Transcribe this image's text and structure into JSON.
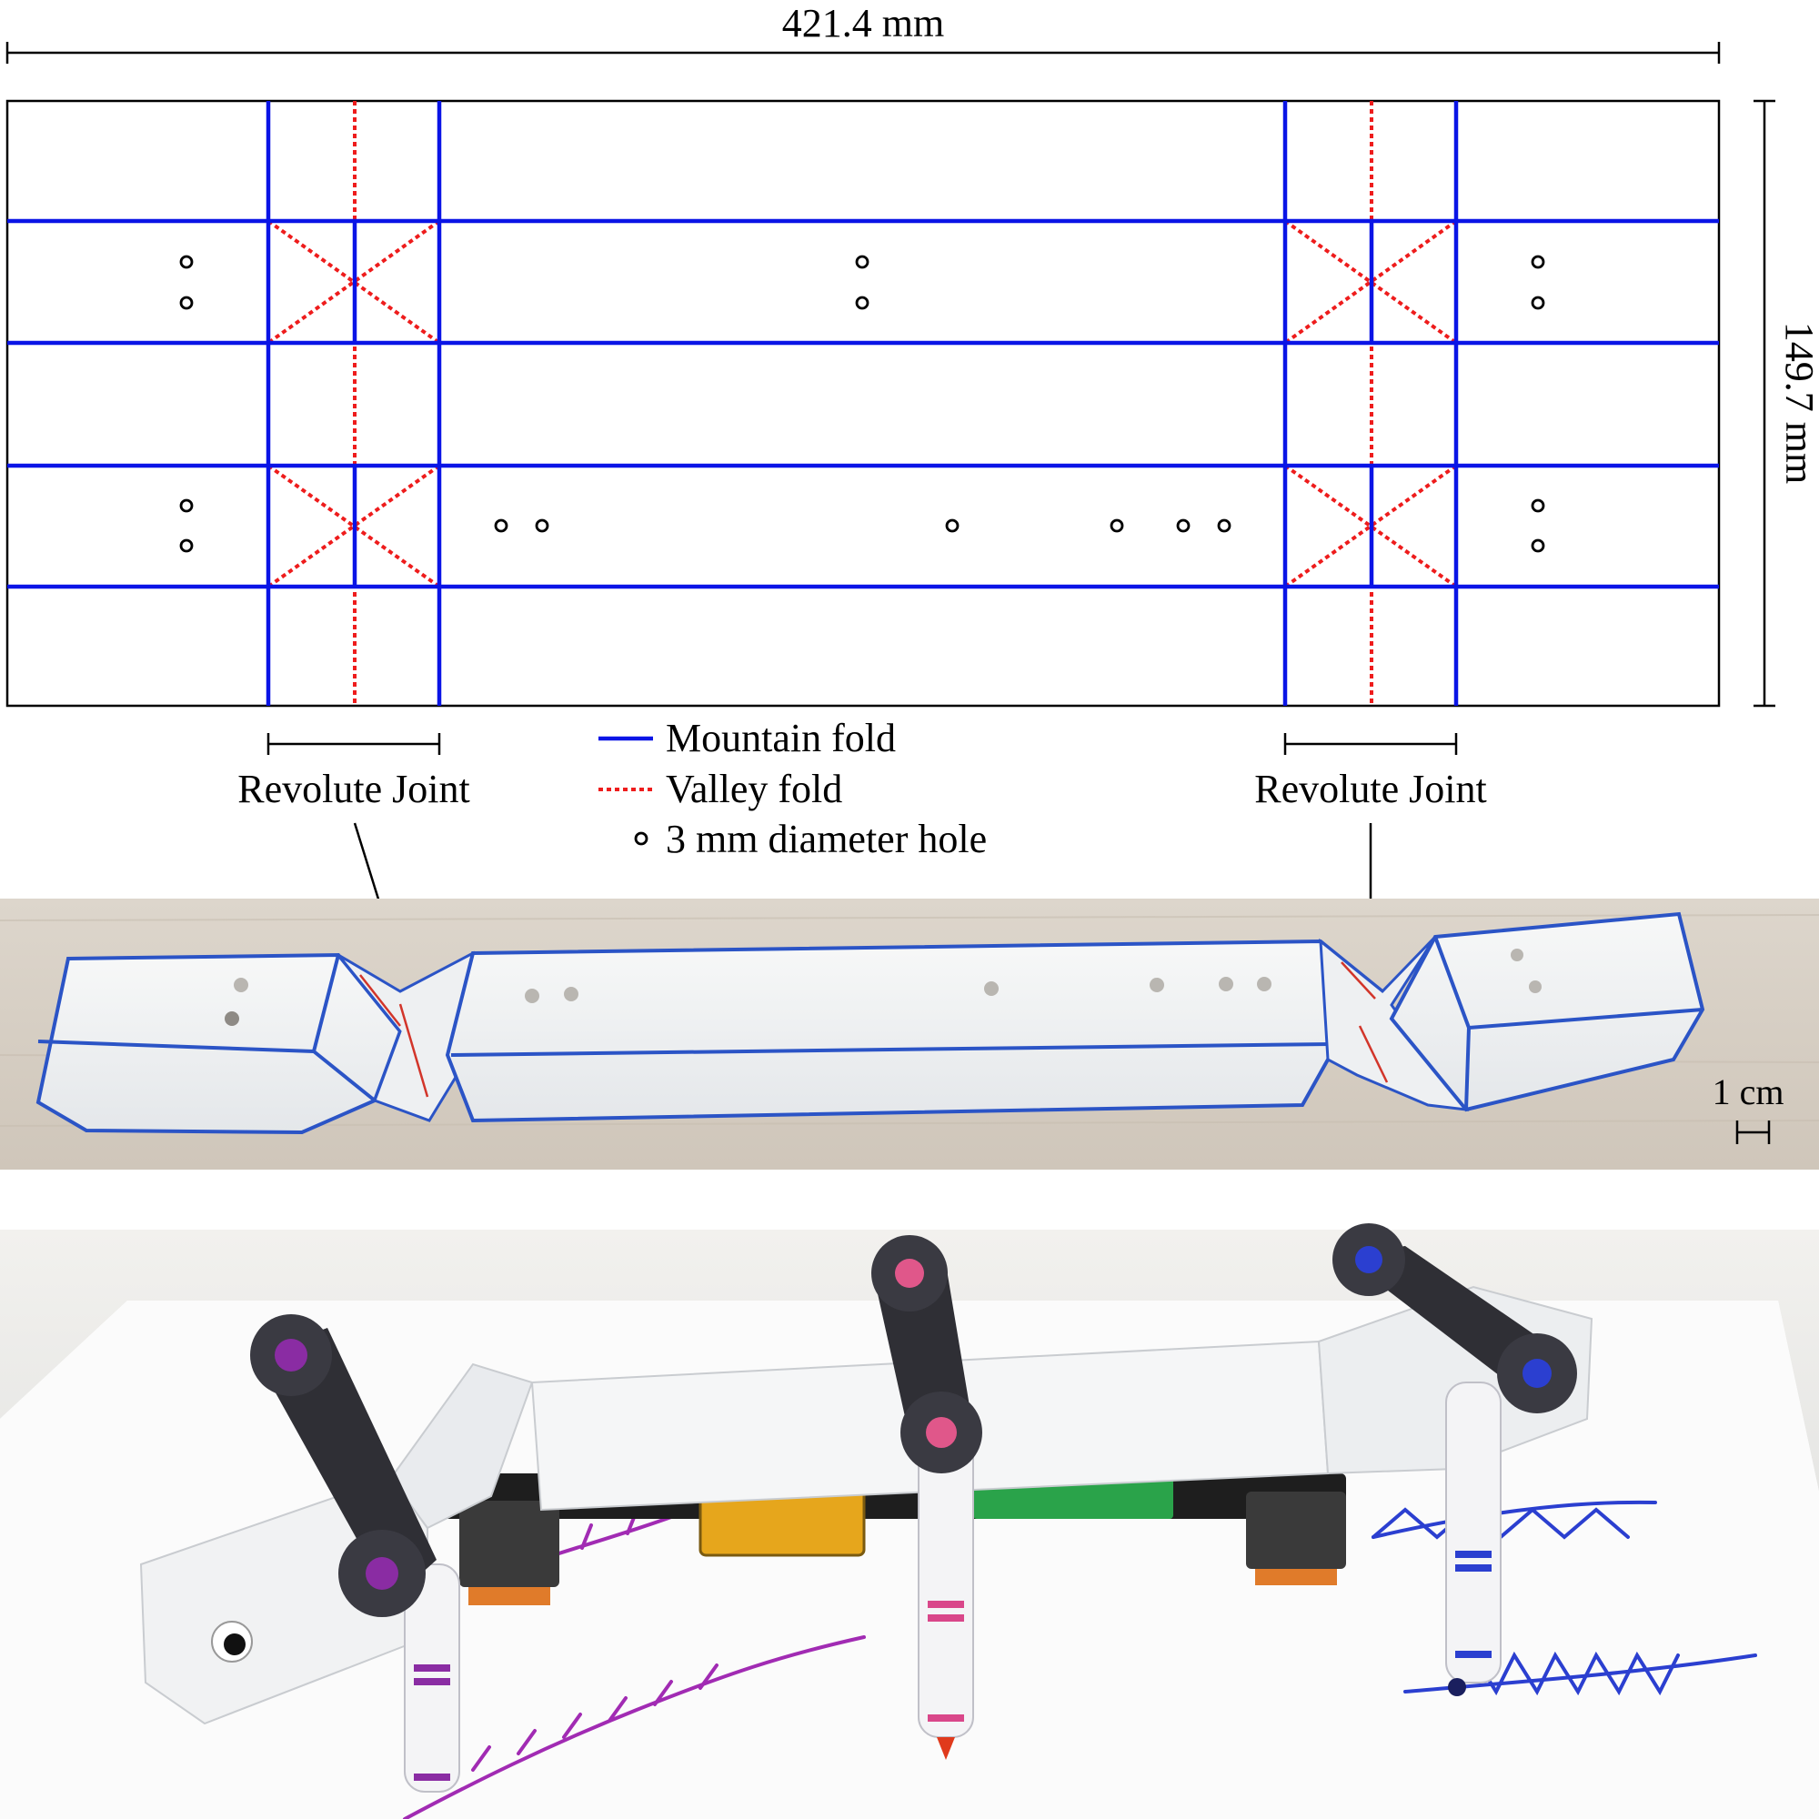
{
  "dimensions": {
    "width": "421.4 mm",
    "height": "149.7 mm"
  },
  "joints": {
    "left": "Revolute Joint",
    "right": "Revolute Joint"
  },
  "legend": {
    "mountain": "Mountain fold",
    "valley": "Valley fold",
    "hole": "3 mm diameter hole"
  },
  "colors": {
    "mountain": "#0a14e6",
    "valley": "#ee1c1c",
    "hole": "#000000",
    "table": "#d9d0c4",
    "paper": "#f4f5f3"
  },
  "scale_bar": "1 cm",
  "photos": {
    "folded_model": "folded origami body",
    "robot": "origami walking robot with marker legs"
  }
}
